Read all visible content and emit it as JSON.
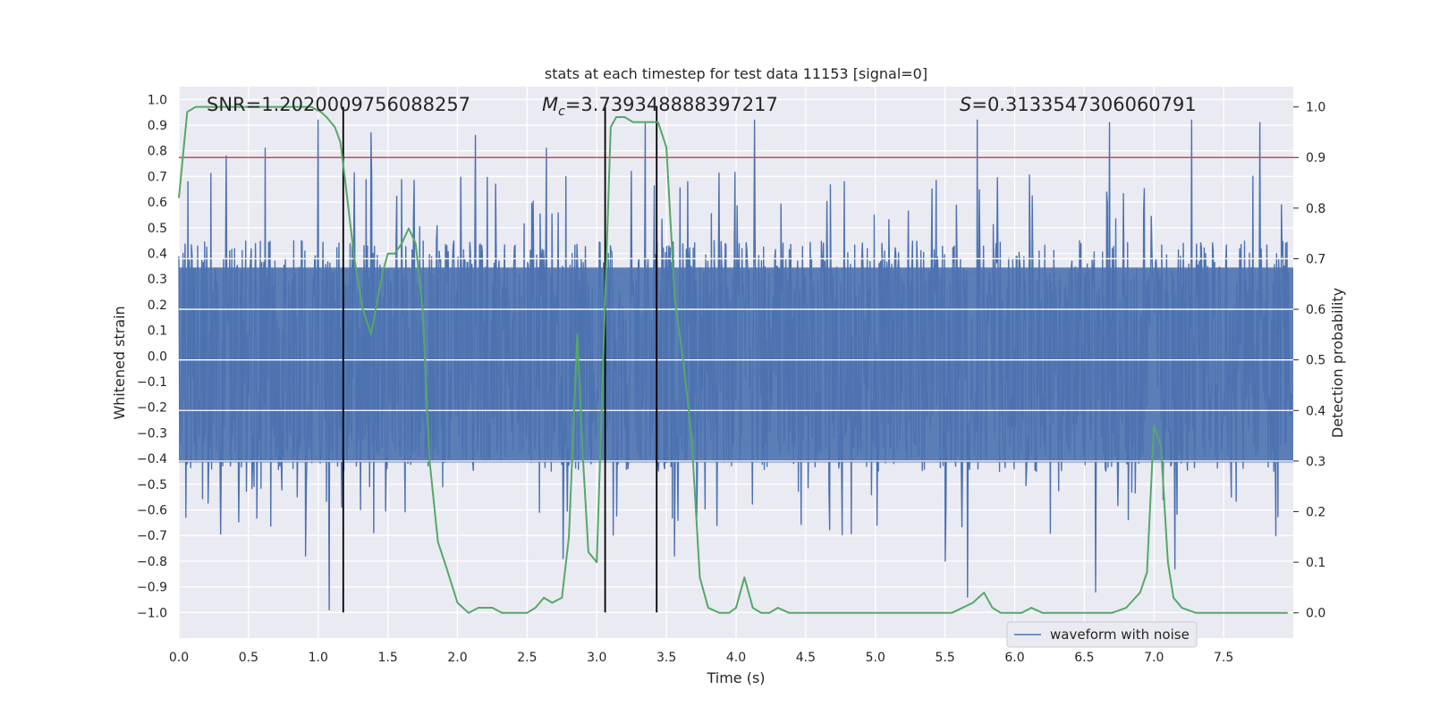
{
  "chart_data": {
    "type": "line",
    "title": "stats at each timestep for test data 11153 [signal=0]",
    "xlabel": "Time (s)",
    "ylabel_left": "Whitened strain",
    "ylabel_right": "Detection probability",
    "xlim": [
      0.0,
      8.0
    ],
    "ylim_left": [
      -1.1,
      1.05
    ],
    "ylim_right": [
      -0.05,
      1.04
    ],
    "xticks": [
      "0.0",
      "0.5",
      "1.0",
      "1.5",
      "2.0",
      "2.5",
      "3.0",
      "3.5",
      "4.0",
      "4.5",
      "5.0",
      "5.5",
      "6.0",
      "6.5",
      "7.0",
      "7.5"
    ],
    "xtick_values": [
      0.0,
      0.5,
      1.0,
      1.5,
      2.0,
      2.5,
      3.0,
      3.5,
      4.0,
      4.5,
      5.0,
      5.5,
      6.0,
      6.5,
      7.0,
      7.5
    ],
    "yticks_left": [
      "1.0",
      "0.9",
      "0.8",
      "0.7",
      "0.6",
      "0.5",
      "0.4",
      "0.3",
      "0.2",
      "0.1",
      "0.0",
      "−0.1",
      "−0.2",
      "−0.3",
      "−0.4",
      "−0.5",
      "−0.6",
      "−0.7",
      "−0.8",
      "−0.9",
      "−1.0"
    ],
    "ytick_values_left": [
      1.0,
      0.9,
      0.8,
      0.7,
      0.6,
      0.5,
      0.4,
      0.3,
      0.2,
      0.1,
      0.0,
      -0.1,
      -0.2,
      -0.3,
      -0.4,
      -0.5,
      -0.6,
      -0.7,
      -0.8,
      -0.9,
      -1.0
    ],
    "yticks_right": [
      "1.0",
      "0.9",
      "0.8",
      "0.7",
      "0.6",
      "0.5",
      "0.4",
      "0.3",
      "0.2",
      "0.1",
      "0.0"
    ],
    "ytick_values_right": [
      1.0,
      0.9,
      0.8,
      0.7,
      0.6,
      0.5,
      0.4,
      0.3,
      0.2,
      0.1,
      0.0
    ],
    "annotations": {
      "snr": "SNR=1.2020009756088257",
      "mc_symbol": "M",
      "mc_sub": "c",
      "mc_value": "=3.739348888397217",
      "s_symbol": "S",
      "s_value": "=0.3133547306060791"
    },
    "legend": {
      "label": "waveform with noise",
      "position": "lower-right"
    },
    "threshold": 0.9,
    "vertical_markers": [
      1.18,
      3.06,
      3.43
    ],
    "waveform": {
      "name": "waveform with noise",
      "duration": 7.99,
      "samples": 1600,
      "typical_min": -0.45,
      "typical_max": 0.45,
      "notable_peaks": [
        {
          "t": 0.34,
          "v": 0.78
        },
        {
          "t": 0.62,
          "v": 0.81
        },
        {
          "t": 1.0,
          "v": 0.92
        },
        {
          "t": 1.38,
          "v": 0.87
        },
        {
          "t": 2.13,
          "v": 0.86
        },
        {
          "t": 2.64,
          "v": 0.81
        },
        {
          "t": 3.35,
          "v": 0.91
        },
        {
          "t": 4.13,
          "v": 0.92
        },
        {
          "t": 5.73,
          "v": 0.92
        },
        {
          "t": 6.68,
          "v": 0.91
        },
        {
          "t": 7.27,
          "v": 0.92
        },
        {
          "t": 7.76,
          "v": 0.91
        },
        {
          "t": 1.08,
          "v": -0.99
        },
        {
          "t": 5.66,
          "v": -0.94
        },
        {
          "t": 6.58,
          "v": -0.92
        },
        {
          "t": 7.15,
          "v": -0.83
        },
        {
          "t": 0.91,
          "v": -0.78
        },
        {
          "t": 2.76,
          "v": -0.79
        },
        {
          "t": 3.56,
          "v": -0.78
        },
        {
          "t": 5.5,
          "v": -0.8
        }
      ]
    },
    "probability": {
      "name": "detection probability",
      "x": [
        0.0,
        0.06,
        0.12,
        0.2,
        0.4,
        0.6,
        0.8,
        0.95,
        1.02,
        1.06,
        1.12,
        1.16,
        1.2,
        1.26,
        1.32,
        1.38,
        1.42,
        1.46,
        1.5,
        1.55,
        1.6,
        1.65,
        1.7,
        1.75,
        1.8,
        1.86,
        1.92,
        2.0,
        2.08,
        2.15,
        2.25,
        2.32,
        2.4,
        2.5,
        2.56,
        2.62,
        2.68,
        2.75,
        2.8,
        2.86,
        2.9,
        2.94,
        3.0,
        3.06,
        3.1,
        3.14,
        3.2,
        3.26,
        3.32,
        3.38,
        3.44,
        3.5,
        3.56,
        3.62,
        3.68,
        3.74,
        3.8,
        3.88,
        3.95,
        4.0,
        4.06,
        4.12,
        4.18,
        4.24,
        4.3,
        4.38,
        4.5,
        4.8,
        5.0,
        5.3,
        5.55,
        5.7,
        5.78,
        5.84,
        5.9,
        5.96,
        6.05,
        6.12,
        6.2,
        6.3,
        6.5,
        6.7,
        6.8,
        6.9,
        6.95,
        7.0,
        7.05,
        7.1,
        7.14,
        7.2,
        7.3,
        7.6,
        7.9,
        7.96
      ],
      "y": [
        0.82,
        0.99,
        1.0,
        1.0,
        1.0,
        1.0,
        1.0,
        1.0,
        0.99,
        0.98,
        0.96,
        0.93,
        0.84,
        0.7,
        0.6,
        0.55,
        0.61,
        0.67,
        0.71,
        0.71,
        0.73,
        0.76,
        0.73,
        0.6,
        0.3,
        0.14,
        0.09,
        0.02,
        0.0,
        0.01,
        0.01,
        0.0,
        0.0,
        0.0,
        0.01,
        0.03,
        0.02,
        0.03,
        0.15,
        0.55,
        0.31,
        0.12,
        0.1,
        0.62,
        0.96,
        0.98,
        0.98,
        0.97,
        0.97,
        0.97,
        0.97,
        0.92,
        0.62,
        0.5,
        0.35,
        0.07,
        0.01,
        0.0,
        0.0,
        0.01,
        0.07,
        0.01,
        0.0,
        0.0,
        0.01,
        0.0,
        0.0,
        0.0,
        0.0,
        0.0,
        0.0,
        0.02,
        0.04,
        0.01,
        0.0,
        0.0,
        0.0,
        0.01,
        0.0,
        0.0,
        0.0,
        0.0,
        0.01,
        0.04,
        0.08,
        0.37,
        0.33,
        0.1,
        0.03,
        0.01,
        0.0,
        0.0,
        0.0,
        0.0
      ]
    }
  }
}
